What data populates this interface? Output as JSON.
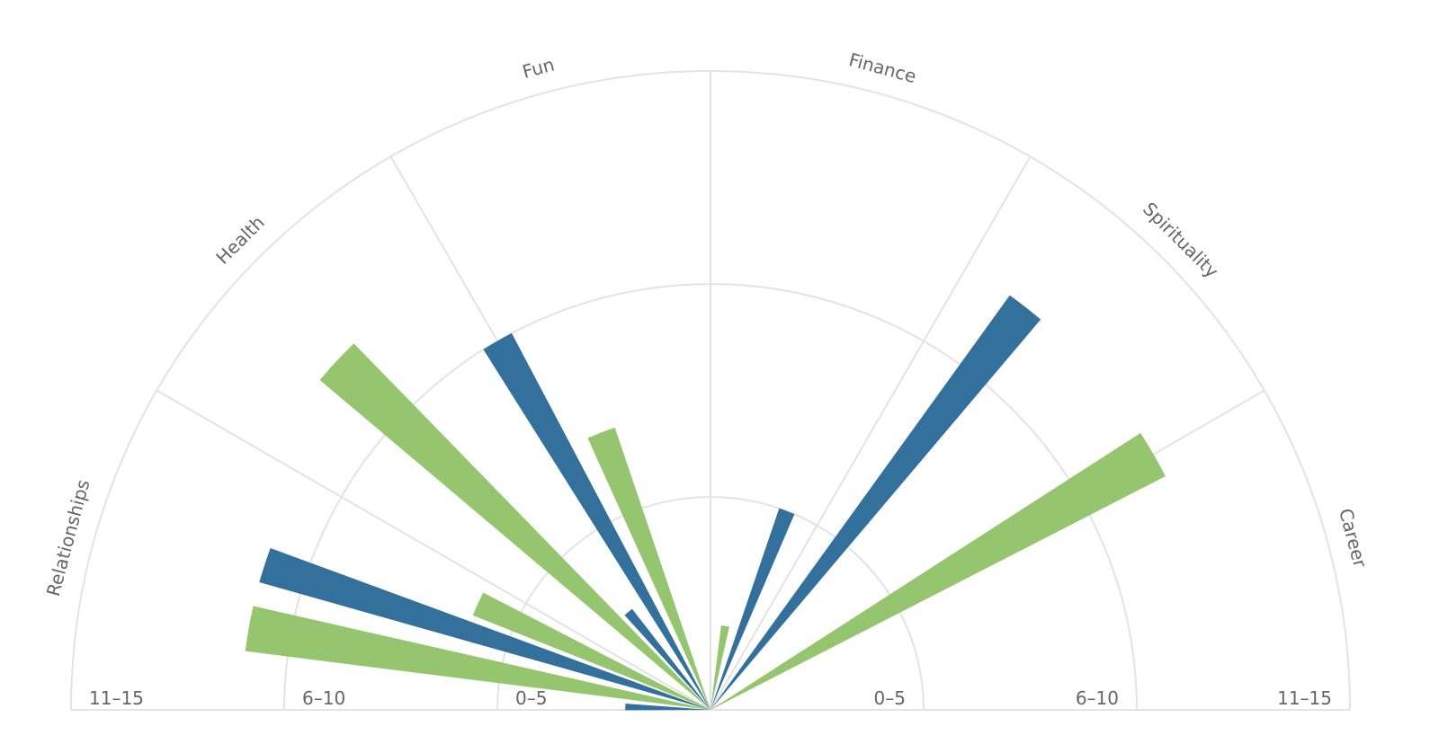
{
  "chart_data": {
    "type": "polar-bar",
    "title": "",
    "categories": [
      "Relationships",
      "Health",
      "Fun",
      "Finance",
      "Spirituality",
      "Career"
    ],
    "ring_labels": [
      "0–5",
      "6–10",
      "11–15"
    ],
    "scale_max": 15,
    "grid": true,
    "legend": "none",
    "colors": {
      "blue": "#33709c",
      "green": "#95c56f",
      "grid": "#e3e3e3",
      "text": "#666666"
    },
    "series": [
      {
        "values": [
          2,
          11,
          3,
          10,
          5,
          12
        ],
        "color": "#33709c"
      },
      {
        "values": [
          11,
          6,
          12,
          7,
          2,
          12
        ],
        "color": "#95c56f"
      }
    ]
  }
}
